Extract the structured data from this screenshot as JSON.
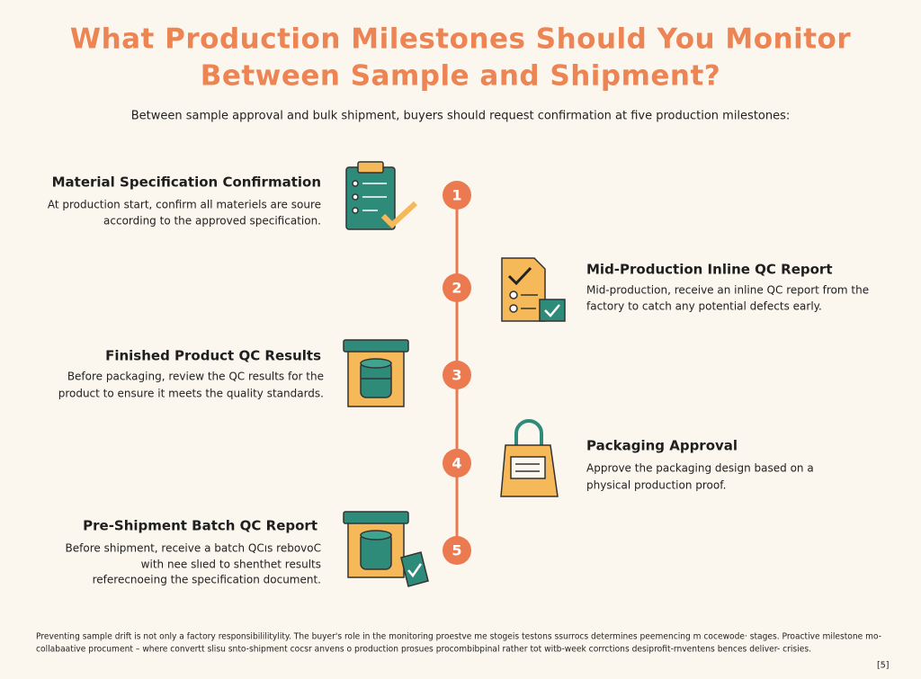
{
  "header": {
    "title_lines": [
      "What Production Milestones Should You Monitor",
      "Between Sample and Shipment?"
    ],
    "subtitle": "Between sample approval and bulk shipment, buyers should request confirmation at five production milestones:"
  },
  "milestones": [
    {
      "number": "1",
      "heading": "Material Specification Confirmation",
      "lines": [
        "At production start, confirm all materiels are soure",
        "according to the approved specification."
      ]
    },
    {
      "number": "2",
      "heading": "Mid-Production Inline QC Report",
      "lines": [
        "Mid-production, receive an inline QC report from the",
        "factory to catch any potential defects early."
      ]
    },
    {
      "number": "3",
      "heading": "Finished Product QC Results",
      "lines": [
        "Before packaging, review the QC results for the",
        "product to ensure it meets the quality standards."
      ]
    },
    {
      "number": "4",
      "heading": "Packaging Approval",
      "lines": [
        "Approve the packaging design based on a",
        "physical production proof."
      ]
    },
    {
      "number": "5",
      "heading": "Pre-Shipment Batch QC Report",
      "lines": [
        "Before shipment, receive a batch QCıs rebovoC",
        "with nee slıed to shenthet results",
        "referecnoeing the specification document."
      ]
    }
  ],
  "footer": {
    "lines": [
      "Preventing sample drift is not only a factory responsibililitylity. The buyer's role in the monitoring proestve me stogeis testons ssurrocs determines peemencing m cocewode· stages. Proactive milestone mo-",
      "collabaative procument – where convertt slisu snto-shipment cocsr anvens o production prosues procombibpinal rather tot witb-week corrctions desiprofit-rnventens bences deliver- crisies."
    ],
    "page": "[5]"
  }
}
